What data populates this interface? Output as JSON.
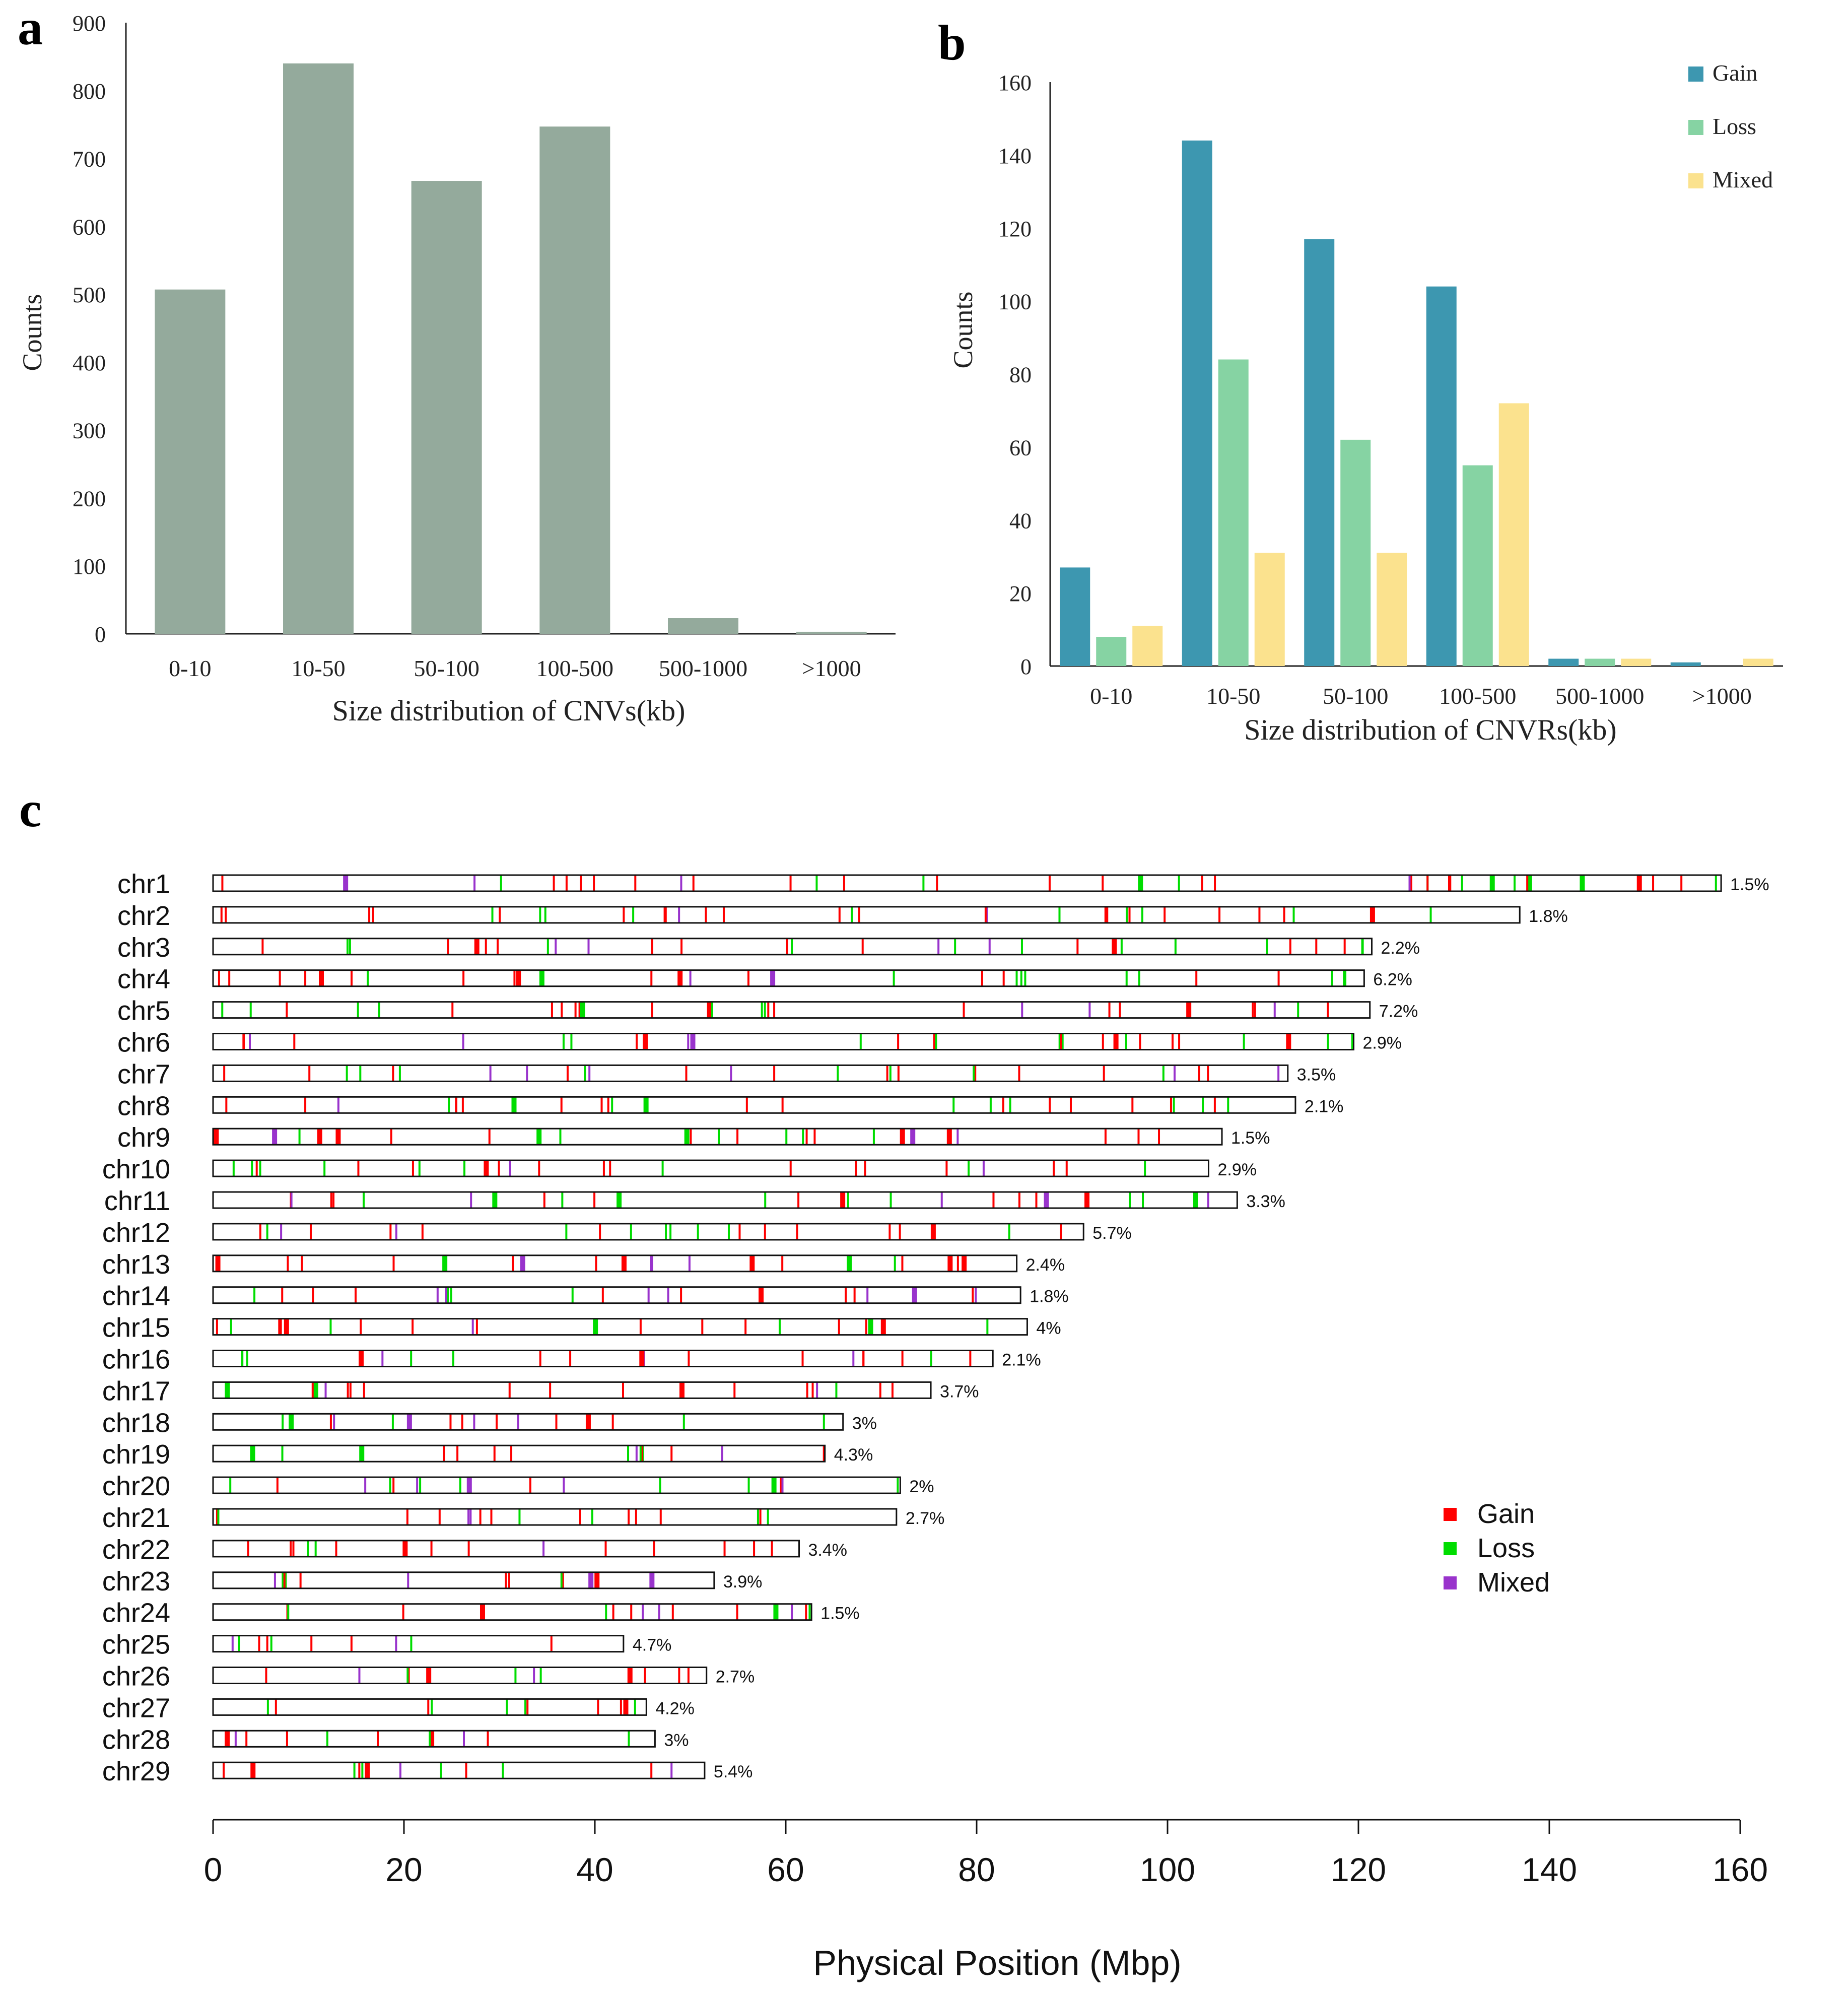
{
  "panels": {
    "a": {
      "letter": "a"
    },
    "b": {
      "letter": "b"
    },
    "c": {
      "letter": "c"
    }
  },
  "chart_data": [
    {
      "id": "a",
      "type": "bar",
      "categories": [
        "0-10",
        "10-50",
        "50-100",
        "100-500",
        "500-1000",
        ">1000"
      ],
      "values": [
        507,
        840,
        667,
        747,
        23,
        3
      ],
      "xlabel": "Size distribution of CNVs(kb)",
      "ylabel": "Counts",
      "ylim": [
        0,
        900
      ],
      "yticks": [
        0,
        100,
        200,
        300,
        400,
        500,
        600,
        700,
        800,
        900
      ],
      "colors": [
        "#94aa9c"
      ],
      "grid": false
    },
    {
      "id": "b",
      "type": "bar",
      "categories": [
        "0-10",
        "10-50",
        "50-100",
        "100-500",
        "500-1000",
        ">1000"
      ],
      "series": [
        {
          "name": "Gain",
          "values": [
            27,
            144,
            117,
            104,
            2,
            1
          ],
          "color": "#3d97b0"
        },
        {
          "name": "Loss",
          "values": [
            8,
            84,
            62,
            55,
            2,
            0
          ],
          "color": "#86d3a3"
        },
        {
          "name": "Mixed",
          "values": [
            11,
            31,
            31,
            72,
            2,
            2
          ],
          "color": "#fbe28e"
        }
      ],
      "xlabel": "Size distribution of CNVRs(kb)",
      "ylabel": "Counts",
      "ylim": [
        0,
        160
      ],
      "yticks": [
        0,
        20,
        40,
        60,
        80,
        100,
        120,
        140,
        160
      ],
      "legend": "top-right",
      "grid": false
    },
    {
      "id": "c",
      "type": "chromosome-map",
      "xlabel": "Physical Position (Mbp)",
      "xlim": [
        0,
        160
      ],
      "xticks": [
        0,
        20,
        40,
        60,
        80,
        100,
        120,
        140,
        160
      ],
      "legend": [
        {
          "name": "Gain",
          "color": "#ff0000"
        },
        {
          "name": "Loss",
          "color": "#00dd00"
        },
        {
          "name": "Mixed",
          "color": "#9933cc"
        }
      ],
      "legend_placement": "right",
      "chromosomes": [
        {
          "name": "chr1",
          "length": 158.0,
          "pct": "1.5%"
        },
        {
          "name": "chr2",
          "length": 136.9,
          "pct": "1.8%"
        },
        {
          "name": "chr3",
          "length": 121.4,
          "pct": "2.2%"
        },
        {
          "name": "chr4",
          "length": 120.6,
          "pct": "6.2%"
        },
        {
          "name": "chr5",
          "length": 121.2,
          "pct": "7.2%"
        },
        {
          "name": "chr6",
          "length": 119.5,
          "pct": "2.9%"
        },
        {
          "name": "chr7",
          "length": 112.6,
          "pct": "3.5%"
        },
        {
          "name": "chr8",
          "length": 113.4,
          "pct": "2.1%"
        },
        {
          "name": "chr9",
          "length": 105.7,
          "pct": "1.5%"
        },
        {
          "name": "chr10",
          "length": 104.3,
          "pct": "2.9%"
        },
        {
          "name": "chr11",
          "length": 107.3,
          "pct": "3.3%"
        },
        {
          "name": "chr12",
          "length": 91.2,
          "pct": "5.7%"
        },
        {
          "name": "chr13",
          "length": 84.2,
          "pct": "2.4%"
        },
        {
          "name": "chr14",
          "length": 84.6,
          "pct": "1.8%"
        },
        {
          "name": "chr15",
          "length": 85.3,
          "pct": "4%"
        },
        {
          "name": "chr16",
          "length": 81.7,
          "pct": "2.1%"
        },
        {
          "name": "chr17",
          "length": 75.2,
          "pct": "3.7%"
        },
        {
          "name": "chr18",
          "length": 66.0,
          "pct": "3%"
        },
        {
          "name": "chr19",
          "length": 64.1,
          "pct": "4.3%"
        },
        {
          "name": "chr20",
          "length": 72.0,
          "pct": "2%"
        },
        {
          "name": "chr21",
          "length": 71.6,
          "pct": "2.7%"
        },
        {
          "name": "chr22",
          "length": 61.4,
          "pct": "3.4%"
        },
        {
          "name": "chr23",
          "length": 52.5,
          "pct": "3.9%"
        },
        {
          "name": "chr24",
          "length": 62.7,
          "pct": "1.5%"
        },
        {
          "name": "chr25",
          "length": 43.0,
          "pct": "4.7%"
        },
        {
          "name": "chr26",
          "length": 51.7,
          "pct": "2.7%"
        },
        {
          "name": "chr27",
          "length": 45.4,
          "pct": "4.2%"
        },
        {
          "name": "chr28",
          "length": 46.3,
          "pct": "3%"
        },
        {
          "name": "chr29",
          "length": 51.5,
          "pct": "5.4%"
        }
      ]
    }
  ]
}
